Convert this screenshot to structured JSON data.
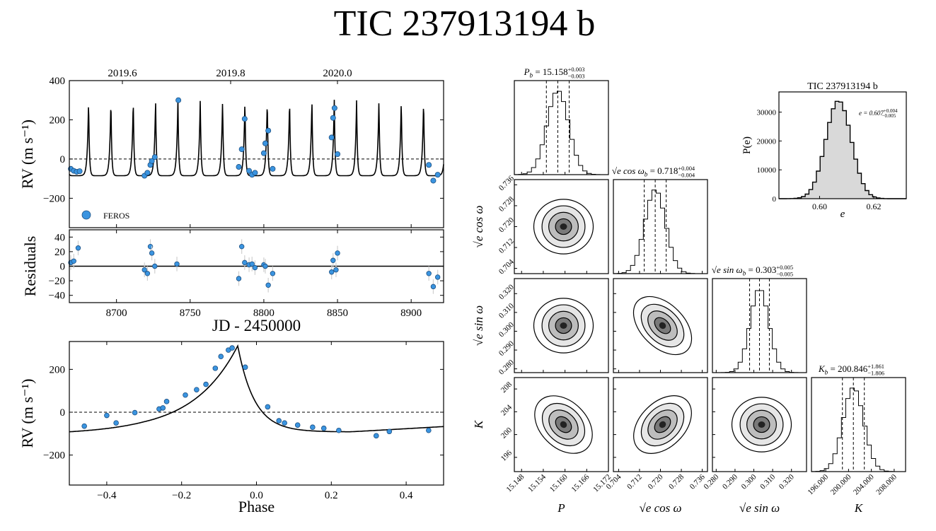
{
  "title": "TIC 237913194 b",
  "colors": {
    "point": "#3a94e0",
    "hist_fill": "#d9d9d9",
    "errbar": "#cfcfcf"
  },
  "chart_data": [
    {
      "id": "rv-time",
      "type": "scatter",
      "ylabel": "RV (m s⁻¹)",
      "top_ticks": [
        "2019.6",
        "2019.8",
        "2020.0"
      ],
      "yticks": [
        "400",
        "200",
        "0",
        "−200"
      ],
      "xlim": [
        8668,
        8922
      ],
      "ylim": [
        -350,
        400
      ],
      "legend": {
        "label": "FEROS",
        "placement": "lower-left"
      },
      "model": {
        "period": 15.158,
        "t_peak": 8741.7,
        "max": 310,
        "min": -85
      },
      "series": [
        {
          "name": "FEROS",
          "points": [
            [
              8669,
              -50
            ],
            [
              8671,
              -60
            ],
            [
              8673,
              -65
            ],
            [
              8675,
              -62
            ],
            [
              8719,
              -85
            ],
            [
              8721,
              -70
            ],
            [
              8723,
              -30
            ],
            [
              8724,
              -10
            ],
            [
              8726,
              10
            ],
            [
              8742,
              300
            ],
            [
              8783,
              -40
            ],
            [
              8785,
              50
            ],
            [
              8787,
              205
            ],
            [
              8790,
              -60
            ],
            [
              8792,
              -80
            ],
            [
              8794,
              -70
            ],
            [
              8800,
              30
            ],
            [
              8801,
              80
            ],
            [
              8803,
              145
            ],
            [
              8806,
              -50
            ],
            [
              8846,
              110
            ],
            [
              8847,
              210
            ],
            [
              8848,
              260
            ],
            [
              8850,
              25
            ],
            [
              8912,
              -30
            ],
            [
              8915,
              -110
            ],
            [
              8918,
              -80
            ]
          ]
        }
      ]
    },
    {
      "id": "residuals",
      "type": "scatter",
      "ylabel": "Residuals",
      "xlabel": "JD - 2450000",
      "xticks": [
        "8700",
        "8750",
        "8800",
        "8850",
        "8900"
      ],
      "yticks": [
        "40",
        "20",
        "0",
        "−20",
        "−40"
      ],
      "xlim": [
        8668,
        8922
      ],
      "ylim": [
        -50,
        50
      ],
      "points": [
        [
          8669,
          5
        ],
        [
          8671,
          7
        ],
        [
          8674,
          25
        ],
        [
          8719,
          -5
        ],
        [
          8721,
          -10
        ],
        [
          8723,
          27
        ],
        [
          8724,
          18
        ],
        [
          8726,
          0
        ],
        [
          8741,
          3
        ],
        [
          8783,
          -17
        ],
        [
          8785,
          27
        ],
        [
          8787,
          5
        ],
        [
          8790,
          2
        ],
        [
          8792,
          3
        ],
        [
          8794,
          -2
        ],
        [
          8800,
          2
        ],
        [
          8801,
          0
        ],
        [
          8803,
          -26
        ],
        [
          8806,
          -10
        ],
        [
          8846,
          -8
        ],
        [
          8847,
          8
        ],
        [
          8849,
          -5
        ],
        [
          8850,
          18
        ],
        [
          8912,
          -10
        ],
        [
          8915,
          -28
        ],
        [
          8918,
          -15
        ]
      ]
    },
    {
      "id": "rv-phase",
      "type": "scatter",
      "ylabel": "RV (m s⁻¹)",
      "xlabel": "Phase",
      "xticks": [
        "−0.4",
        "−0.2",
        "0.0",
        "0.2",
        "0.4"
      ],
      "yticks": [
        "200",
        "0",
        "−200"
      ],
      "xlim": [
        -0.5,
        0.5
      ],
      "ylim": [
        -340,
        330
      ],
      "points": [
        [
          -0.46,
          -65
        ],
        [
          -0.4,
          -15
        ],
        [
          -0.375,
          -50
        ],
        [
          -0.325,
          -2
        ],
        [
          -0.26,
          15
        ],
        [
          -0.25,
          20
        ],
        [
          -0.24,
          50
        ],
        [
          -0.19,
          80
        ],
        [
          -0.16,
          105
        ],
        [
          -0.135,
          130
        ],
        [
          -0.11,
          205
        ],
        [
          -0.095,
          260
        ],
        [
          -0.075,
          290
        ],
        [
          -0.065,
          300
        ],
        [
          -0.03,
          210
        ],
        [
          0.03,
          25
        ],
        [
          0.06,
          -40
        ],
        [
          0.075,
          -50
        ],
        [
          0.11,
          -60
        ],
        [
          0.15,
          -70
        ],
        [
          0.18,
          -75
        ],
        [
          0.22,
          -85
        ],
        [
          0.32,
          -110
        ],
        [
          0.355,
          -90
        ],
        [
          0.46,
          -85
        ]
      ]
    },
    {
      "id": "corner",
      "type": "corner",
      "params": [
        {
          "title_lhs": "P",
          "title_sub": "b",
          "title_val": " = 15.158",
          "up": "+0.003",
          "dn": "−0.003",
          "ylabel": "",
          "xlabel": "P_b",
          "mean": 15.158,
          "sd": 0.003,
          "range": [
            15.146,
            15.172
          ],
          "ticks": [
            "15.148",
            "15.154",
            "15.160",
            "15.166",
            "15.172"
          ]
        },
        {
          "title_lhs": "√e cos ω",
          "title_sub": "b",
          "title_val": " = 0.718",
          "up": "+0.004",
          "dn": "−0.004",
          "ylabel": "√e cos ω_b",
          "xlabel": "√e cos ω_b",
          "mean": 0.718,
          "sd": 0.004,
          "range": [
            0.702,
            0.738
          ],
          "ticks": [
            "0.704",
            "0.712",
            "0.720",
            "0.728",
            "0.736"
          ]
        },
        {
          "title_lhs": "√e sin ω",
          "title_sub": "b",
          "title_val": " = 0.303",
          "up": "+0.005",
          "dn": "−0.005",
          "ylabel": "√e sin ω_b",
          "xlabel": "√e sin ω_b",
          "mean": 0.303,
          "sd": 0.005,
          "range": [
            0.278,
            0.328
          ],
          "ticks": [
            "0.280",
            "0.290",
            "0.300",
            "0.310",
            "0.320"
          ]
        },
        {
          "title_lhs": "K",
          "title_sub": "b",
          "title_val": " = 200.846",
          "up": "+1.861",
          "dn": "−1.806",
          "ylabel": "K_b",
          "xlabel": "K_b",
          "mean": 200.846,
          "sd": 1.83,
          "range": [
            193.5,
            210
          ],
          "ticks": [
            "196.000",
            "200.000",
            "204.000",
            "208.000"
          ],
          "yticks": [
            "196",
            "200",
            "204",
            "208"
          ]
        }
      ],
      "correlations": [
        [
          1,
          0,
          0,
          0
        ],
        [
          0,
          1,
          0,
          0
        ],
        [
          0,
          0.7,
          1,
          0
        ],
        [
          0.5,
          0.6,
          0,
          1
        ]
      ]
    },
    {
      "id": "ecc-hist",
      "type": "histogram",
      "title": "TIC 237913194 b",
      "xlabel": "e",
      "ylabel": "P(e)",
      "annotation_lhs": "e = 0.607",
      "annotation_up": "+0.004",
      "annotation_dn": "−0.005",
      "mean": 0.607,
      "sd": 0.0047,
      "peak": 34000,
      "xlim": [
        0.585,
        0.632
      ],
      "ylim": [
        0,
        37000
      ],
      "xticks": [
        "0.60",
        "0.62"
      ],
      "yticks": [
        "0",
        "10000",
        "20000",
        "30000"
      ]
    }
  ]
}
